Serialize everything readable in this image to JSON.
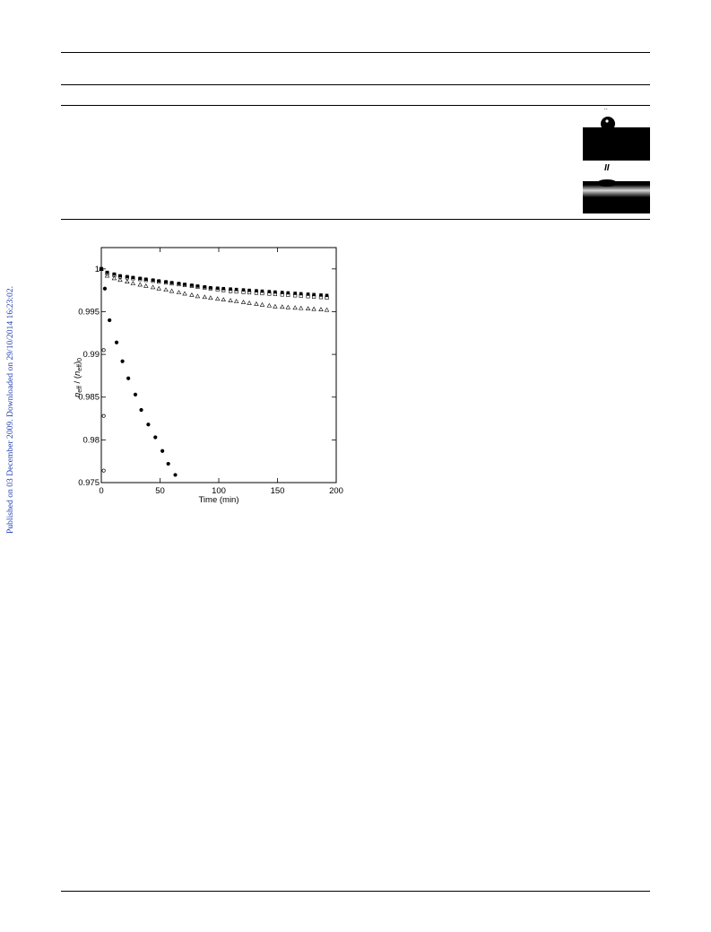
{
  "side_note": "Published on 03 December 2009. Downloaded on 29/10/2014 16:23:02.",
  "photos": [
    {
      "label": "\"",
      "description_name": "droplet-high-contact-angle"
    },
    {
      "label": "II",
      "description_name": "droplet-low-contact-angle"
    }
  ],
  "chart_data": {
    "type": "scatter",
    "title": "",
    "xlabel": "Time (min)",
    "ylabel": "n_eff / (n_eff)_0",
    "xlim": [
      0,
      200
    ],
    "ylim": [
      0.975,
      1.0025
    ],
    "xticks": [
      0,
      50,
      100,
      150,
      200
    ],
    "yticks": [
      0.975,
      0.98,
      0.985,
      0.99,
      0.995,
      1
    ],
    "ytick_labels": [
      "0.975",
      "0.98",
      "0.985",
      "0.99",
      "0.995",
      "1"
    ],
    "grid": false,
    "series": [
      {
        "marker": "open-circle",
        "x": [
          0,
          2,
          2,
          2
        ],
        "y": [
          1.0,
          0.9905,
          0.9828,
          0.9764
        ]
      },
      {
        "marker": "filled-circle",
        "x": [
          0,
          3,
          7,
          13,
          18,
          23,
          29,
          34,
          40,
          46,
          52,
          57,
          63
        ],
        "y": [
          1.0,
          0.9977,
          0.994,
          0.9914,
          0.9892,
          0.9872,
          0.9853,
          0.9835,
          0.9818,
          0.9803,
          0.9787,
          0.9772,
          0.9759
        ]
      },
      {
        "marker": "open-triangle",
        "x": [
          0,
          5,
          11,
          16,
          22,
          27,
          33,
          38,
          44,
          49,
          55,
          60,
          66,
          71,
          77,
          82,
          88,
          93,
          99,
          104,
          110,
          115,
          121,
          126,
          132,
          137,
          143,
          148,
          154,
          159,
          165,
          170,
          176,
          181,
          187,
          192
        ],
        "y": [
          1.0,
          0.9992,
          0.9989,
          0.9987,
          0.9985,
          0.9983,
          0.99815,
          0.998,
          0.99785,
          0.9977,
          0.99755,
          0.9974,
          0.99725,
          0.9971,
          0.99695,
          0.9968,
          0.9967,
          0.9966,
          0.9965,
          0.9964,
          0.9963,
          0.9962,
          0.9961,
          0.996,
          0.9959,
          0.9958,
          0.9957,
          0.9956,
          0.99555,
          0.9955,
          0.99545,
          0.9954,
          0.99535,
          0.9953,
          0.99525,
          0.9952
        ]
      },
      {
        "marker": "open-square",
        "x": [
          0,
          5,
          11,
          16,
          22,
          27,
          33,
          38,
          44,
          49,
          55,
          60,
          66,
          71,
          77,
          82,
          88,
          93,
          99,
          104,
          110,
          115,
          121,
          126,
          132,
          137,
          143,
          148,
          154,
          159,
          165,
          170,
          176,
          181,
          187,
          192
        ],
        "y": [
          1.0,
          0.9995,
          0.9993,
          0.9991,
          0.999,
          0.9989,
          0.9988,
          0.9987,
          0.9986,
          0.9985,
          0.9984,
          0.9983,
          0.9982,
          0.9981,
          0.998,
          0.9979,
          0.9978,
          0.9977,
          0.9976,
          0.9975,
          0.9974,
          0.99735,
          0.9973,
          0.99725,
          0.9972,
          0.99715,
          0.9971,
          0.99705,
          0.997,
          0.99695,
          0.9969,
          0.99685,
          0.9968,
          0.99675,
          0.9967,
          0.99665
        ]
      },
      {
        "marker": "filled-square",
        "x": [
          0,
          5,
          11,
          16,
          22,
          27,
          33,
          38,
          44,
          49,
          55,
          60,
          66,
          71,
          77,
          82,
          88,
          93,
          99,
          104,
          110,
          115,
          121,
          126,
          132,
          137,
          143,
          148,
          154,
          159,
          165,
          170,
          176,
          181,
          187,
          192
        ],
        "y": [
          1.0,
          0.9996,
          0.9994,
          0.9992,
          0.9991,
          0.999,
          0.9989,
          0.9988,
          0.9987,
          0.9986,
          0.9985,
          0.9984,
          0.9983,
          0.9982,
          0.9981,
          0.998,
          0.9979,
          0.9978,
          0.99775,
          0.9977,
          0.99765,
          0.9976,
          0.99755,
          0.9975,
          0.99745,
          0.9974,
          0.99735,
          0.9973,
          0.99725,
          0.9972,
          0.99715,
          0.9971,
          0.99705,
          0.997,
          0.99695,
          0.9969
        ]
      }
    ]
  }
}
